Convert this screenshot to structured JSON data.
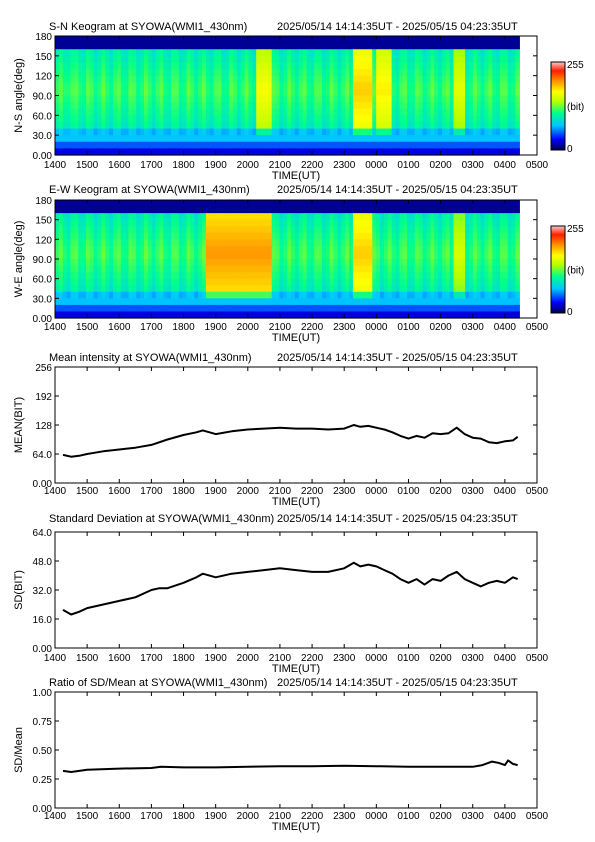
{
  "colors": {
    "colorscale": [
      "#00004a",
      "#0000ff",
      "#00c8ff",
      "#00ff8c",
      "#b4ff00",
      "#ffff00",
      "#ff9600",
      "#ff1e00",
      "#ffc8c8"
    ],
    "line": "#000000"
  },
  "time_range_label": "2025/05/14 14:14:35UT - 2025/05/15 04:23:35UT",
  "x_ticks": [
    "1400",
    "1500",
    "1600",
    "1700",
    "1800",
    "1900",
    "2000",
    "2100",
    "2200",
    "2300",
    "0000",
    "0100",
    "0200",
    "0300",
    "0400",
    "0500"
  ],
  "x_label": "TIME(UT)",
  "chart_data": [
    {
      "type": "heatmap",
      "title": "S-N Keogram at SYOWA(WMI1_430nm)",
      "ylabel": "N-S angle(deg)",
      "xlabel": "TIME(UT)",
      "yticks": [
        "0.00",
        "30.0",
        "60.0",
        "90.0",
        "120",
        "150",
        "180"
      ],
      "ylim": [
        0,
        180
      ],
      "colorbar": {
        "max_label": "255",
        "unit_label": "(bit)",
        "min_label": "0",
        "range": [
          0,
          255
        ]
      },
      "features": [
        {
          "time": "1400-1500",
          "description": "green with blue lower band",
          "level": 0.45
        },
        {
          "time": "2030-2050",
          "level": 0.65
        },
        {
          "time": "2330-2350",
          "level": 0.72
        },
        {
          "time": "0010-0030",
          "level": 0.68
        },
        {
          "time": "0230-0245",
          "level": 0.62
        },
        {
          "time": "0320-0410",
          "level": 0.35
        }
      ]
    },
    {
      "type": "heatmap",
      "title": "E-W Keogram at SYOWA(WMI1_430nm)",
      "ylabel": "W-E angle(deg)",
      "xlabel": "TIME(UT)",
      "yticks": [
        "0.00",
        "30.0",
        "60.0",
        "90.0",
        "120",
        "150",
        "180"
      ],
      "ylim": [
        0,
        180
      ],
      "colorbar": {
        "max_label": "255",
        "unit_label": "(bit)",
        "min_label": "0",
        "range": [
          0,
          255
        ]
      },
      "features": [
        {
          "time": "1900-2050",
          "level": 0.78
        },
        {
          "time": "2330-2350",
          "level": 0.72
        },
        {
          "time": "0230-0245",
          "level": 0.6
        },
        {
          "time": "0320-0410",
          "level": 0.35
        }
      ]
    },
    {
      "type": "line",
      "title": "Mean intensity at SYOWA(WMI1_430nm)",
      "ylabel": "MEAN(BIT)",
      "xlabel": "TIME(UT)",
      "yticks": [
        "0.00",
        "64.0",
        "128",
        "192",
        "256"
      ],
      "ylim": [
        0,
        256
      ],
      "x": [
        14.25,
        14.5,
        14.75,
        15,
        15.5,
        16,
        16.5,
        17,
        17.5,
        18,
        18.4,
        18.6,
        19,
        19.5,
        20,
        20.5,
        21,
        21.5,
        22,
        22.5,
        23,
        23.3,
        23.5,
        23.75,
        24,
        24.25,
        24.5,
        24.75,
        25,
        25.25,
        25.5,
        25.75,
        26,
        26.25,
        26.5,
        26.75,
        27,
        27.25,
        27.5,
        27.75,
        28,
        28.25,
        28.4
      ],
      "y": [
        62,
        58,
        60,
        64,
        70,
        74,
        78,
        84,
        96,
        106,
        112,
        116,
        108,
        114,
        118,
        120,
        122,
        120,
        120,
        118,
        120,
        128,
        124,
        126,
        122,
        118,
        112,
        104,
        98,
        104,
        100,
        110,
        108,
        110,
        122,
        108,
        100,
        98,
        90,
        88,
        92,
        94,
        102
      ]
    },
    {
      "type": "line",
      "title": "Standard Deviation at SYOWA(WMI1_430nm)",
      "ylabel": "SD(BIT)",
      "xlabel": "TIME(UT)",
      "yticks": [
        "0.00",
        "16.0",
        "32.0",
        "48.0",
        "64.0"
      ],
      "ylim": [
        0,
        64
      ],
      "x": [
        14.25,
        14.5,
        14.75,
        15,
        15.5,
        16,
        16.5,
        17,
        17.25,
        17.5,
        18,
        18.4,
        18.6,
        19,
        19.5,
        20,
        20.5,
        21,
        21.5,
        22,
        22.5,
        23,
        23.3,
        23.5,
        23.75,
        24,
        24.25,
        24.5,
        24.75,
        25,
        25.25,
        25.5,
        25.75,
        26,
        26.25,
        26.5,
        26.75,
        27,
        27.25,
        27.5,
        27.75,
        28,
        28.25,
        28.4
      ],
      "y": [
        21,
        18.5,
        20,
        22,
        24,
        26,
        28,
        32,
        33,
        33,
        36,
        39,
        41,
        39,
        41,
        42,
        43,
        44,
        43,
        42,
        42,
        44,
        47,
        45,
        46,
        45,
        43,
        41,
        38,
        36,
        38,
        35,
        38,
        37,
        40,
        42,
        38,
        36,
        34,
        36,
        37,
        36,
        39,
        38
      ]
    },
    {
      "type": "line",
      "title": "Ratio of SD/Mean at SYOWA(WMI1_430nm)",
      "ylabel": "SD/Mean",
      "xlabel": "TIME(UT)",
      "yticks": [
        "0.00",
        "0.25",
        "0.50",
        "0.75",
        "1.00"
      ],
      "ylim": [
        0,
        1
      ],
      "x": [
        14.25,
        14.5,
        15,
        16,
        17,
        17.3,
        18,
        19,
        20,
        21,
        22,
        23,
        24,
        25,
        26,
        27,
        27.3,
        27.6,
        27.8,
        28,
        28.1,
        28.25,
        28.4
      ],
      "y": [
        0.32,
        0.31,
        0.33,
        0.34,
        0.345,
        0.355,
        0.35,
        0.35,
        0.355,
        0.36,
        0.36,
        0.365,
        0.36,
        0.355,
        0.355,
        0.355,
        0.37,
        0.4,
        0.39,
        0.37,
        0.41,
        0.38,
        0.37
      ]
    }
  ]
}
